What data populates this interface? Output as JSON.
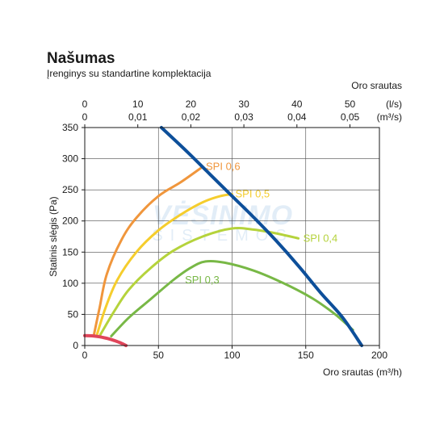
{
  "title": "Našumas",
  "subtitle": "Įrenginys su standartine komplektacija",
  "watermark": {
    "line1": "VĖSINIMO",
    "line2": "SISTEMOS"
  },
  "chart_data": {
    "type": "line",
    "xlabel": "Oro srautas (m³/h)",
    "ylabel": "Statinis slėgis (Pa)",
    "xlim": [
      0,
      200
    ],
    "ylim": [
      0,
      350
    ],
    "xticks": [
      0,
      50,
      100,
      150,
      200
    ],
    "yticks": [
      0,
      50,
      100,
      150,
      200,
      250,
      300,
      350
    ],
    "grid": true,
    "top_axis": {
      "title": "Oro srautas",
      "ls_unit": "(l/s)",
      "m3s_unit": "(m³/s)",
      "ls_ticks": [
        "0",
        "10",
        "20",
        "30",
        "40",
        "50"
      ],
      "m3s_ticks": [
        "0",
        "0,01",
        "0,02",
        "0,03",
        "0,04",
        "0,05"
      ]
    },
    "series": [
      {
        "name": "SPI 0,6",
        "color": "#f0963c",
        "x": [
          6,
          10,
          15,
          25,
          35,
          50,
          65,
          80
        ],
        "y": [
          15,
          60,
          115,
          170,
          205,
          240,
          262,
          287
        ]
      },
      {
        "name": "SPI 0,5",
        "color": "#f5cd2d",
        "x": [
          8,
          14,
          22,
          35,
          50,
          65,
          80,
          92,
          100
        ],
        "y": [
          15,
          60,
          105,
          150,
          185,
          210,
          230,
          240,
          243
        ]
      },
      {
        "name": "SPI 0,4",
        "color": "#b5d33c",
        "x": [
          10,
          20,
          30,
          45,
          60,
          80,
          100,
          115,
          130,
          145
        ],
        "y": [
          15,
          55,
          90,
          125,
          152,
          175,
          188,
          186,
          180,
          172
        ]
      },
      {
        "name": "SPI 0,3",
        "color": "#78b846",
        "x": [
          18,
          30,
          45,
          60,
          72,
          82,
          95,
          115,
          135,
          155,
          170,
          182
        ],
        "y": [
          15,
          45,
          75,
          105,
          125,
          135,
          133,
          120,
          100,
          75,
          50,
          25
        ]
      },
      {
        "name": "",
        "color": "#0d4f9a",
        "x": [
          52,
          70,
          85,
          100,
          115,
          130,
          145,
          160,
          175,
          188
        ],
        "y": [
          350,
          310,
          275,
          240,
          205,
          168,
          128,
          85,
          45,
          0
        ]
      },
      {
        "name": "",
        "color": "#e0455a",
        "x": [
          0,
          5,
          10,
          15,
          20,
          25,
          28
        ],
        "y": [
          16,
          15.5,
          14,
          11.5,
          8,
          3.5,
          0
        ]
      }
    ]
  }
}
